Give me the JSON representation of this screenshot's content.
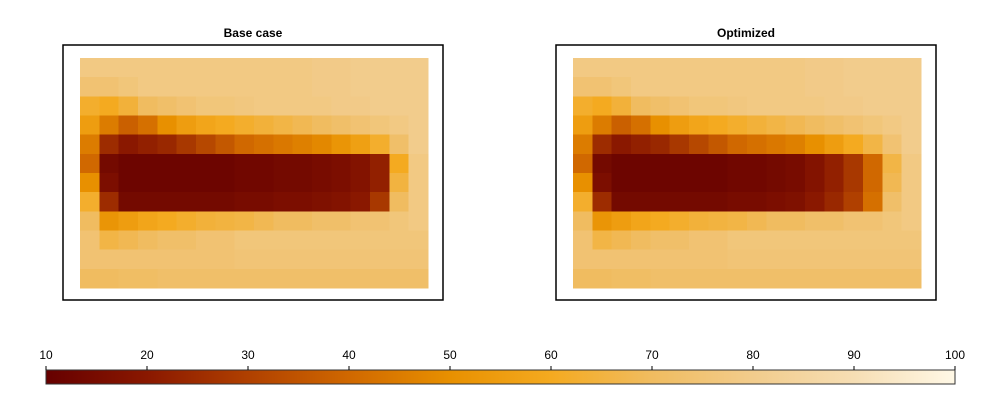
{
  "chart_data": {
    "type": "heatmap",
    "colormap": [
      "#660000",
      "#8a1800",
      "#b04000",
      "#d06800",
      "#e89000",
      "#f4aa20",
      "#f0bc60",
      "#f2cc8c",
      "#f6deb4",
      "#fff8e6"
    ],
    "zlim": [
      10,
      100
    ],
    "zticks": [
      10,
      20,
      30,
      40,
      50,
      60,
      70,
      80,
      90,
      100
    ],
    "panels": [
      {
        "title": "Base case",
        "z": [
          [
            78,
            78,
            78,
            78,
            78,
            78,
            78,
            78,
            78,
            78,
            78,
            78,
            79,
            79,
            80,
            80,
            80,
            80
          ],
          [
            74,
            74,
            76,
            78,
            78,
            78,
            78,
            78,
            78,
            78,
            78,
            78,
            79,
            79,
            80,
            80,
            80,
            80
          ],
          [
            62,
            60,
            64,
            70,
            72,
            74,
            76,
            76,
            77,
            78,
            78,
            78,
            78,
            79,
            79,
            80,
            80,
            80
          ],
          [
            55,
            45,
            38,
            42,
            50,
            55,
            58,
            60,
            62,
            64,
            66,
            68,
            70,
            72,
            74,
            76,
            78,
            80
          ],
          [
            45,
            25,
            20,
            22,
            24,
            28,
            32,
            36,
            40,
            42,
            44,
            46,
            48,
            52,
            56,
            62,
            72,
            80
          ],
          [
            40,
            14,
            12,
            12,
            12,
            12,
            12,
            12,
            13,
            13,
            14,
            14,
            15,
            16,
            18,
            22,
            60,
            78
          ],
          [
            50,
            16,
            12,
            12,
            12,
            12,
            12,
            12,
            13,
            13,
            14,
            14,
            15,
            16,
            18,
            22,
            65,
            78
          ],
          [
            62,
            25,
            14,
            14,
            14,
            14,
            14,
            14,
            15,
            15,
            16,
            16,
            17,
            18,
            20,
            28,
            70,
            78
          ],
          [
            70,
            52,
            55,
            58,
            60,
            62,
            64,
            65,
            66,
            68,
            70,
            70,
            72,
            72,
            74,
            74,
            76,
            78
          ],
          [
            74,
            66,
            68,
            70,
            72,
            72,
            74,
            74,
            76,
            76,
            76,
            76,
            76,
            76,
            76,
            76,
            76,
            76
          ],
          [
            74,
            74,
            74,
            74,
            74,
            74,
            74,
            74,
            75,
            75,
            75,
            75,
            75,
            75,
            75,
            75,
            75,
            75
          ],
          [
            70,
            70,
            71,
            71,
            72,
            72,
            72,
            72,
            72,
            72,
            72,
            72,
            72,
            72,
            72,
            72,
            72,
            72
          ]
        ]
      },
      {
        "title": "Optimized",
        "z": [
          [
            78,
            78,
            78,
            78,
            78,
            78,
            78,
            78,
            78,
            78,
            78,
            78,
            79,
            79,
            80,
            80,
            80,
            80
          ],
          [
            74,
            74,
            76,
            78,
            78,
            78,
            78,
            78,
            78,
            78,
            78,
            78,
            79,
            79,
            80,
            80,
            80,
            80
          ],
          [
            62,
            60,
            64,
            70,
            72,
            74,
            76,
            76,
            77,
            78,
            78,
            78,
            78,
            79,
            79,
            80,
            80,
            80
          ],
          [
            55,
            45,
            38,
            42,
            50,
            55,
            58,
            60,
            62,
            64,
            66,
            68,
            70,
            72,
            74,
            76,
            78,
            80
          ],
          [
            45,
            25,
            20,
            22,
            24,
            28,
            32,
            36,
            40,
            42,
            44,
            46,
            50,
            55,
            60,
            66,
            74,
            80
          ],
          [
            40,
            14,
            12,
            12,
            12,
            12,
            12,
            12,
            13,
            13,
            14,
            15,
            18,
            22,
            28,
            40,
            66,
            78
          ],
          [
            50,
            16,
            12,
            12,
            12,
            12,
            12,
            12,
            13,
            13,
            14,
            15,
            18,
            22,
            28,
            40,
            68,
            78
          ],
          [
            62,
            25,
            14,
            14,
            14,
            14,
            14,
            14,
            15,
            15,
            16,
            17,
            20,
            24,
            30,
            42,
            72,
            78
          ],
          [
            70,
            52,
            55,
            58,
            60,
            62,
            64,
            65,
            66,
            68,
            70,
            70,
            72,
            72,
            74,
            74,
            76,
            78
          ],
          [
            74,
            66,
            68,
            70,
            72,
            72,
            74,
            74,
            76,
            76,
            76,
            76,
            76,
            76,
            76,
            76,
            76,
            76
          ],
          [
            74,
            74,
            74,
            74,
            74,
            74,
            74,
            74,
            75,
            75,
            75,
            75,
            75,
            75,
            75,
            75,
            75,
            75
          ],
          [
            70,
            70,
            71,
            71,
            72,
            72,
            72,
            72,
            72,
            72,
            72,
            72,
            72,
            72,
            72,
            72,
            72,
            72
          ]
        ]
      }
    ]
  }
}
